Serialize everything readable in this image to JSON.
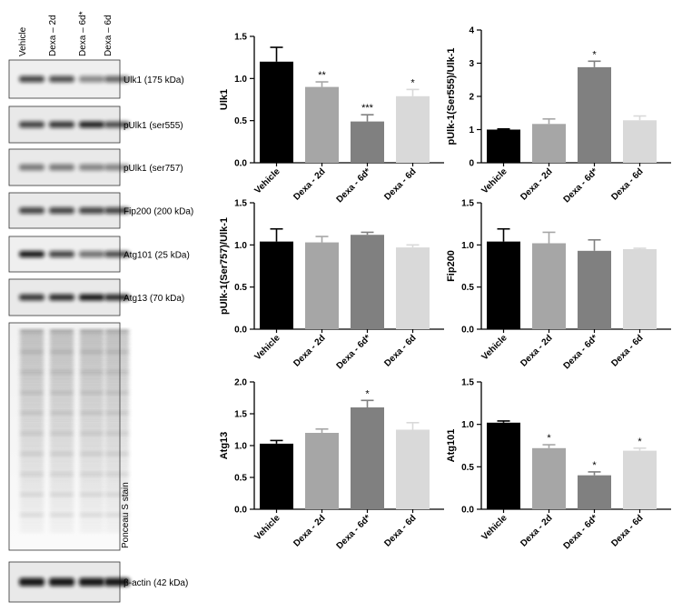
{
  "blots": {
    "lanes": [
      "Vehicle",
      "Dexa – 2d",
      "Dexa – 6d*",
      "Dexa – 6d"
    ],
    "panels": [
      {
        "label": "Ulk1 (175 kDa)",
        "intensity": [
          0.75,
          0.7,
          0.45,
          0.6
        ]
      },
      {
        "label": "pUlk1 (ser555)",
        "intensity": [
          0.75,
          0.8,
          0.9,
          0.7
        ]
      },
      {
        "label": "pUlk1 (ser757)",
        "intensity": [
          0.5,
          0.5,
          0.45,
          0.45
        ]
      },
      {
        "label": "Fip200 (200 kDa)",
        "intensity": [
          0.75,
          0.75,
          0.75,
          0.75
        ]
      },
      {
        "label": "Atg101 (25 kDa)",
        "intensity": [
          0.95,
          0.75,
          0.55,
          0.7
        ]
      },
      {
        "label": "Atg13 (70 kDa)",
        "intensity": [
          0.8,
          0.85,
          0.95,
          0.85
        ]
      },
      {
        "label": "Ponceau S stain",
        "intensity": [
          0.5,
          0.5,
          0.5,
          0.5
        ]
      },
      {
        "label": "β-actin (42 kDa)",
        "intensity": [
          0.95,
          0.95,
          0.95,
          0.95
        ]
      }
    ]
  },
  "chart_data": [
    {
      "type": "bar",
      "ylabel": "Ulk1",
      "categories": [
        "Vehicle",
        "Dexa - 2d",
        "Dexa - 6d*",
        "Dexa - 6d"
      ],
      "values": [
        1.2,
        0.9,
        0.49,
        0.79
      ],
      "errors": [
        0.17,
        0.06,
        0.08,
        0.08
      ],
      "significance": [
        "",
        "**",
        "***",
        "*"
      ],
      "ylim": [
        0,
        1.5
      ],
      "yticks": [
        "0.0",
        "0.5",
        "1.0",
        "1.5"
      ],
      "colors": [
        "#000000",
        "#a6a6a6",
        "#808080",
        "#d9d9d9"
      ]
    },
    {
      "type": "bar",
      "ylabel": "pUlk-1(Ser555)/Ulk-1",
      "categories": [
        "Vehicle",
        "Dexa - 2d",
        "Dexa - 6d*",
        "Dexa - 6d"
      ],
      "values": [
        1.0,
        1.17,
        2.88,
        1.28
      ],
      "errors": [
        0.02,
        0.15,
        0.18,
        0.13
      ],
      "significance": [
        "",
        "",
        "*",
        ""
      ],
      "ylim": [
        0,
        4
      ],
      "yticks": [
        "0",
        "1",
        "2",
        "3",
        "4"
      ],
      "colors": [
        "#000000",
        "#a6a6a6",
        "#808080",
        "#d9d9d9"
      ]
    },
    {
      "type": "bar",
      "ylabel": "pUlk-1(Ser757)/Ulk-1",
      "categories": [
        "Vehicle",
        "Dexa - 2d",
        "Dexa - 6d*",
        "Dexa - 6d"
      ],
      "values": [
        1.04,
        1.03,
        1.12,
        0.97
      ],
      "errors": [
        0.15,
        0.07,
        0.03,
        0.03
      ],
      "significance": [
        "",
        "",
        "",
        ""
      ],
      "ylim": [
        0,
        1.5
      ],
      "yticks": [
        "0.0",
        "0.5",
        "1.0",
        "1.5"
      ],
      "colors": [
        "#000000",
        "#a6a6a6",
        "#808080",
        "#d9d9d9"
      ]
    },
    {
      "type": "bar",
      "ylabel": "Fip200",
      "categories": [
        "Vehicle",
        "Dexa - 2d",
        "Dexa - 6d*",
        "Dexa - 6d"
      ],
      "values": [
        1.04,
        1.02,
        0.93,
        0.95
      ],
      "errors": [
        0.15,
        0.13,
        0.13,
        0.01
      ],
      "significance": [
        "",
        "",
        "",
        ""
      ],
      "ylim": [
        0,
        1.5
      ],
      "yticks": [
        "0.0",
        "0.5",
        "1.0",
        "1.5"
      ],
      "colors": [
        "#000000",
        "#a6a6a6",
        "#808080",
        "#d9d9d9"
      ]
    },
    {
      "type": "bar",
      "ylabel": "Atg13",
      "categories": [
        "Vehicle",
        "Dexa - 2d",
        "Dexa - 6d*",
        "Dexa - 6d"
      ],
      "values": [
        1.03,
        1.2,
        1.6,
        1.25
      ],
      "errors": [
        0.05,
        0.06,
        0.11,
        0.11
      ],
      "significance": [
        "",
        "",
        "*",
        ""
      ],
      "ylim": [
        0,
        2.0
      ],
      "yticks": [
        "0.0",
        "0.5",
        "1.0",
        "1.5",
        "2.0"
      ],
      "colors": [
        "#000000",
        "#a6a6a6",
        "#808080",
        "#d9d9d9"
      ]
    },
    {
      "type": "bar",
      "ylabel": "Atg101",
      "categories": [
        "Vehicle",
        "Dexa - 2d",
        "Dexa - 6d*",
        "Dexa - 6d"
      ],
      "values": [
        1.02,
        0.72,
        0.4,
        0.69
      ],
      "errors": [
        0.02,
        0.04,
        0.04,
        0.03
      ],
      "significance": [
        "",
        "*",
        "*",
        "*"
      ],
      "ylim": [
        0,
        1.5
      ],
      "yticks": [
        "0.0",
        "0.5",
        "1.0",
        "1.5"
      ],
      "colors": [
        "#000000",
        "#a6a6a6",
        "#808080",
        "#d9d9d9"
      ]
    }
  ]
}
